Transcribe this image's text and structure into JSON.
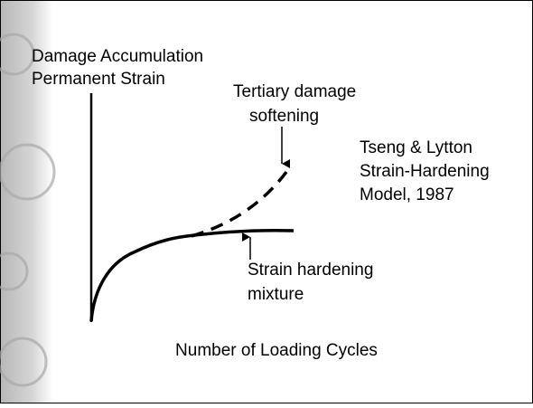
{
  "diagram": {
    "y_axis_label": [
      "Damage Accumulation",
      "Permanent Strain"
    ],
    "x_axis_label": "Number of Loading Cycles",
    "tertiary_label": [
      "Tertiary damage",
      "softening"
    ],
    "hardening_label": [
      "Strain hardening",
      "mixture"
    ],
    "model_note": [
      "Tseng & Lytton",
      "Strain-Hardening",
      "Model, 1987"
    ]
  }
}
